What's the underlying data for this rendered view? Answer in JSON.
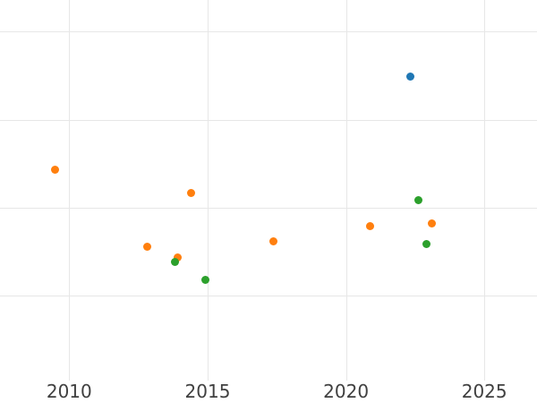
{
  "chart_data": {
    "type": "scatter",
    "title": "",
    "xlabel": "",
    "ylabel": "",
    "x_ticks": [
      2010,
      2015,
      2020,
      2025
    ],
    "x_tick_labels": [
      "2010",
      "2015",
      "2020",
      "2025"
    ],
    "xlim": [
      2007.5,
      2026.9
    ],
    "ylim": [
      -0.22,
      4.36
    ],
    "y_axis": {
      "tick_labels_visible": false,
      "units": "gridline-units"
    },
    "y_gridlines": [
      1,
      2,
      3,
      4
    ],
    "grid": true,
    "legend_visible": false,
    "series": [
      {
        "name": "series-blue",
        "color": "#1f77b4",
        "marker": "circle",
        "points": [
          {
            "x": 2022.31,
            "y": 3.49
          }
        ]
      },
      {
        "name": "series-orange",
        "color": "#ff7f0e",
        "marker": "circle",
        "points": [
          {
            "x": 2009.48,
            "y": 2.43
          },
          {
            "x": 2012.83,
            "y": 1.56
          },
          {
            "x": 2013.91,
            "y": 1.43
          },
          {
            "x": 2014.4,
            "y": 2.17
          },
          {
            "x": 2017.39,
            "y": 1.62
          },
          {
            "x": 2020.87,
            "y": 1.79
          },
          {
            "x": 2023.09,
            "y": 1.82
          }
        ]
      },
      {
        "name": "series-green",
        "color": "#2ca02c",
        "marker": "circle",
        "points": [
          {
            "x": 2013.81,
            "y": 1.38
          },
          {
            "x": 2014.91,
            "y": 1.18
          },
          {
            "x": 2022.6,
            "y": 2.09
          },
          {
            "x": 2022.91,
            "y": 1.59
          }
        ]
      }
    ]
  },
  "styles": {
    "background": "#ffffff",
    "grid_color": "#e7e7e7",
    "tick_label_color": "#404040"
  }
}
